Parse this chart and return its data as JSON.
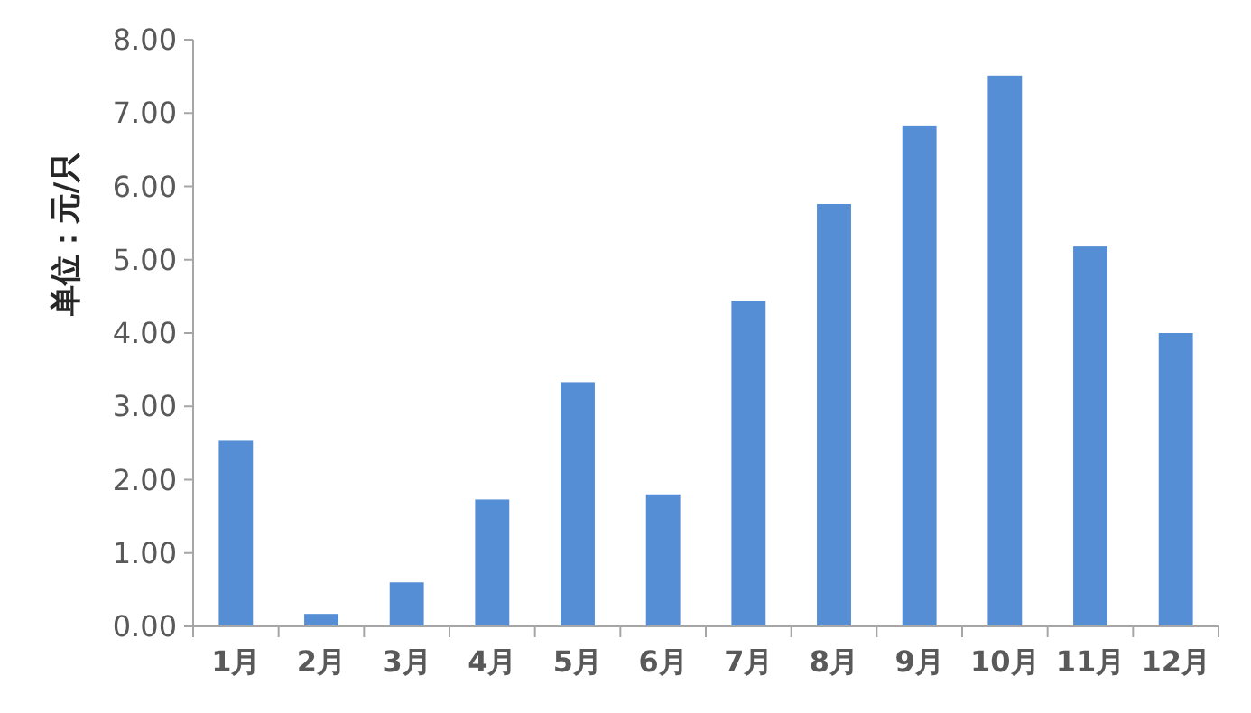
{
  "chart_data": {
    "type": "bar",
    "ylabel": "单位：元/只",
    "categories": [
      "1月",
      "2月",
      "3月",
      "4月",
      "5月",
      "6月",
      "7月",
      "8月",
      "9月",
      "10月",
      "11月",
      "12月"
    ],
    "values": [
      2.53,
      0.17,
      0.6,
      1.73,
      3.33,
      1.8,
      4.44,
      5.76,
      6.82,
      7.51,
      5.18,
      4.0
    ],
    "color": "#558ed5",
    "ylim": [
      0,
      8
    ],
    "yticks": [
      {
        "value": 0,
        "label": "0.00"
      },
      {
        "value": 1,
        "label": "1.00"
      },
      {
        "value": 2,
        "label": "2.00"
      },
      {
        "value": 3,
        "label": "3.00"
      },
      {
        "value": 4,
        "label": "4.00"
      },
      {
        "value": 5,
        "label": "5.00"
      },
      {
        "value": 6,
        "label": "6.00"
      },
      {
        "value": 7,
        "label": "7.00"
      },
      {
        "value": 8,
        "label": "8.00"
      }
    ],
    "grid": false
  }
}
